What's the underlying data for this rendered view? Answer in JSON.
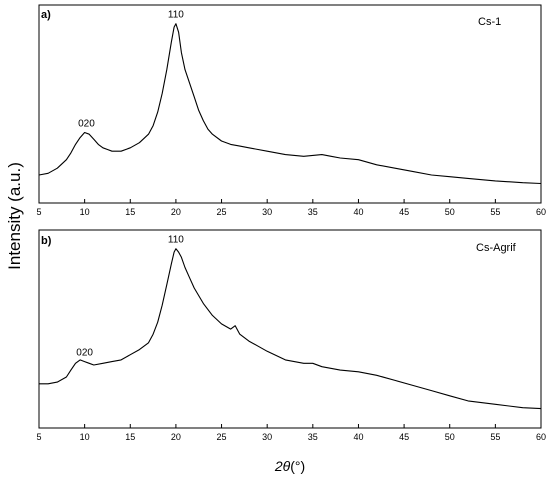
{
  "chart_data": [
    {
      "type": "line",
      "panel_label": "a)",
      "legend": "Cs-1",
      "xlim": [
        5,
        60
      ],
      "xticks": [
        5,
        10,
        15,
        20,
        25,
        30,
        35,
        40,
        45,
        50,
        55,
        60
      ],
      "ylim": [
        0,
        100
      ],
      "annotations": [
        {
          "text": "020",
          "x": 10.2
        },
        {
          "text": "110",
          "x": 20.0
        }
      ],
      "series": [
        {
          "x": [
            5,
            6,
            7,
            8,
            8.5,
            9,
            9.5,
            10,
            10.5,
            11,
            11.5,
            12,
            12.5,
            13,
            14,
            15,
            16,
            17,
            17.5,
            18,
            18.5,
            19,
            19.5,
            19.8,
            20,
            20.3,
            20.6,
            21,
            21.5,
            22,
            22.5,
            23,
            23.5,
            24,
            25,
            26,
            27,
            28,
            30,
            32,
            34,
            35,
            36,
            37,
            38,
            40,
            42,
            44,
            46,
            48,
            50,
            52,
            55,
            58,
            60
          ],
          "y": [
            10,
            11,
            14,
            19,
            23,
            28,
            32,
            35,
            34,
            31,
            28,
            26,
            25,
            24,
            24,
            26,
            29,
            34,
            39,
            47,
            58,
            72,
            88,
            97,
            99,
            94,
            82,
            72,
            64,
            56,
            48,
            42,
            37,
            34,
            30,
            28,
            27,
            26,
            24,
            22,
            21,
            21.5,
            22,
            21,
            20,
            19,
            16,
            14,
            12,
            10,
            9,
            8,
            6.5,
            5.5,
            5
          ]
        }
      ]
    },
    {
      "type": "line",
      "panel_label": "b)",
      "legend": "Cs-Agrif",
      "xlim": [
        5,
        60
      ],
      "xticks": [
        5,
        10,
        15,
        20,
        25,
        30,
        35,
        40,
        45,
        50,
        55,
        60
      ],
      "ylim": [
        0,
        100
      ],
      "annotations": [
        {
          "text": "020",
          "x": 10.0
        },
        {
          "text": "110",
          "x": 20.0
        }
      ],
      "series": [
        {
          "x": [
            5,
            6,
            7,
            8,
            8.5,
            9,
            9.5,
            10,
            10.5,
            11,
            12,
            13,
            14,
            15,
            16,
            17,
            17.5,
            18,
            18.5,
            19,
            19.5,
            19.8,
            20,
            20.3,
            20.6,
            21,
            21.5,
            22,
            23,
            24,
            25,
            26,
            26.5,
            27,
            28,
            29,
            30,
            32,
            34,
            35,
            36,
            38,
            40,
            42,
            44,
            46,
            48,
            50,
            52,
            55,
            58,
            60
          ],
          "y": [
            20,
            20,
            21,
            24,
            28,
            32,
            34,
            33,
            32,
            31,
            32,
            33,
            34,
            37,
            40,
            44,
            49,
            56,
            66,
            78,
            90,
            97,
            99,
            97,
            94,
            88,
            82,
            76,
            67,
            60,
            55,
            52,
            54,
            49,
            45,
            42,
            39,
            34,
            32,
            32,
            30,
            28,
            27,
            25,
            22,
            19,
            16,
            13,
            10,
            8,
            6,
            5.5
          ]
        }
      ]
    }
  ],
  "axis": {
    "ylabel": "Intensity (a.u.)",
    "xlabel_main": "2θ",
    "xlabel_unit": "(°)"
  }
}
